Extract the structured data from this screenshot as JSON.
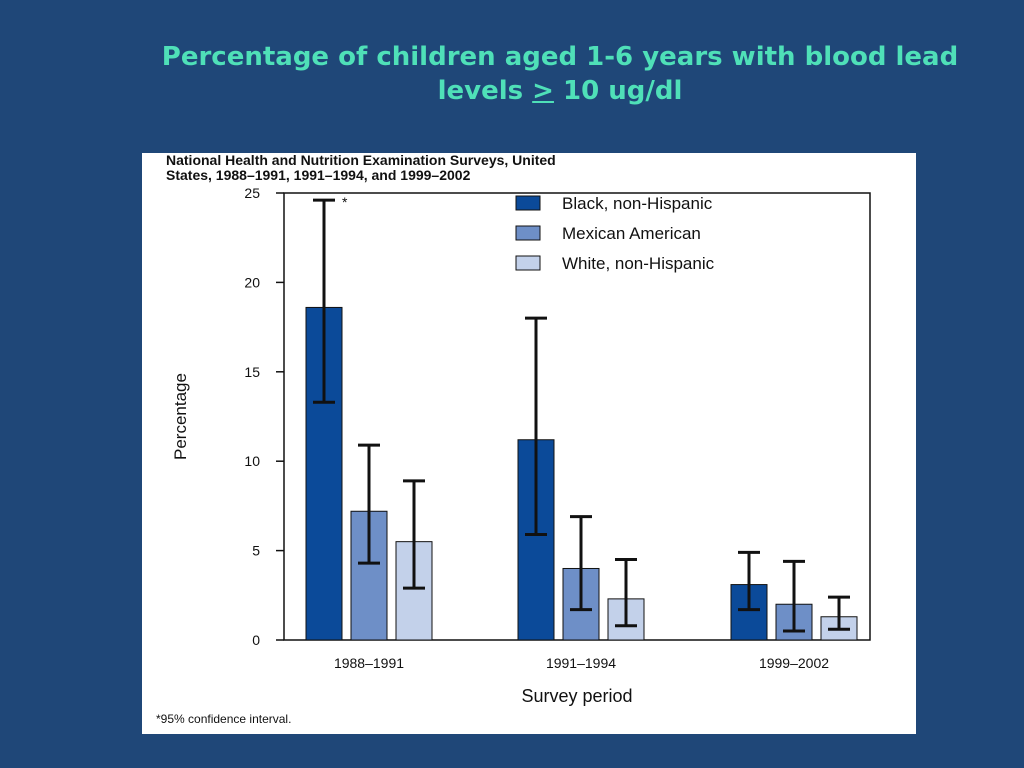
{
  "slide": {
    "title_line1": "Percentage of children aged 1-6 years with blood lead",
    "title_line2_pre": "levels ",
    "title_line2_symbol": ">",
    "title_line2_post": " 10 ug/dl"
  },
  "figure": {
    "header_line1": "National Health and Nutrition Examination Surveys, United",
    "header_line2": "States, 1988–1991, 1991–1994, and 1999–2002",
    "footnote": "*95% confidence interval.",
    "ci_marker": "*"
  },
  "chart_data": {
    "type": "bar",
    "categories": [
      "1988–1991",
      "1991–1994",
      "1999–2002"
    ],
    "xlabel": "Survey period",
    "ylabel": "Percentage",
    "ylim": [
      0,
      25
    ],
    "yticks": [
      0,
      5,
      10,
      15,
      20,
      25
    ],
    "legend_position": "top-right",
    "grid": false,
    "series": [
      {
        "name": "Black, non-Hispanic",
        "color": "#0b4a99",
        "values": [
          18.6,
          11.2,
          3.1
        ],
        "ci_low": [
          13.3,
          5.9,
          1.7
        ],
        "ci_high": [
          24.6,
          18.0,
          4.9
        ]
      },
      {
        "name": "Mexican American",
        "color": "#6e8fc7",
        "values": [
          7.2,
          4.0,
          2.0
        ],
        "ci_low": [
          4.3,
          1.7,
          0.5
        ],
        "ci_high": [
          10.9,
          6.9,
          4.4
        ]
      },
      {
        "name": "White, non-Hispanic",
        "color": "#c3d1ea",
        "values": [
          5.5,
          2.3,
          1.3
        ],
        "ci_low": [
          2.9,
          0.8,
          0.6
        ],
        "ci_high": [
          8.9,
          4.5,
          2.4
        ]
      }
    ]
  }
}
